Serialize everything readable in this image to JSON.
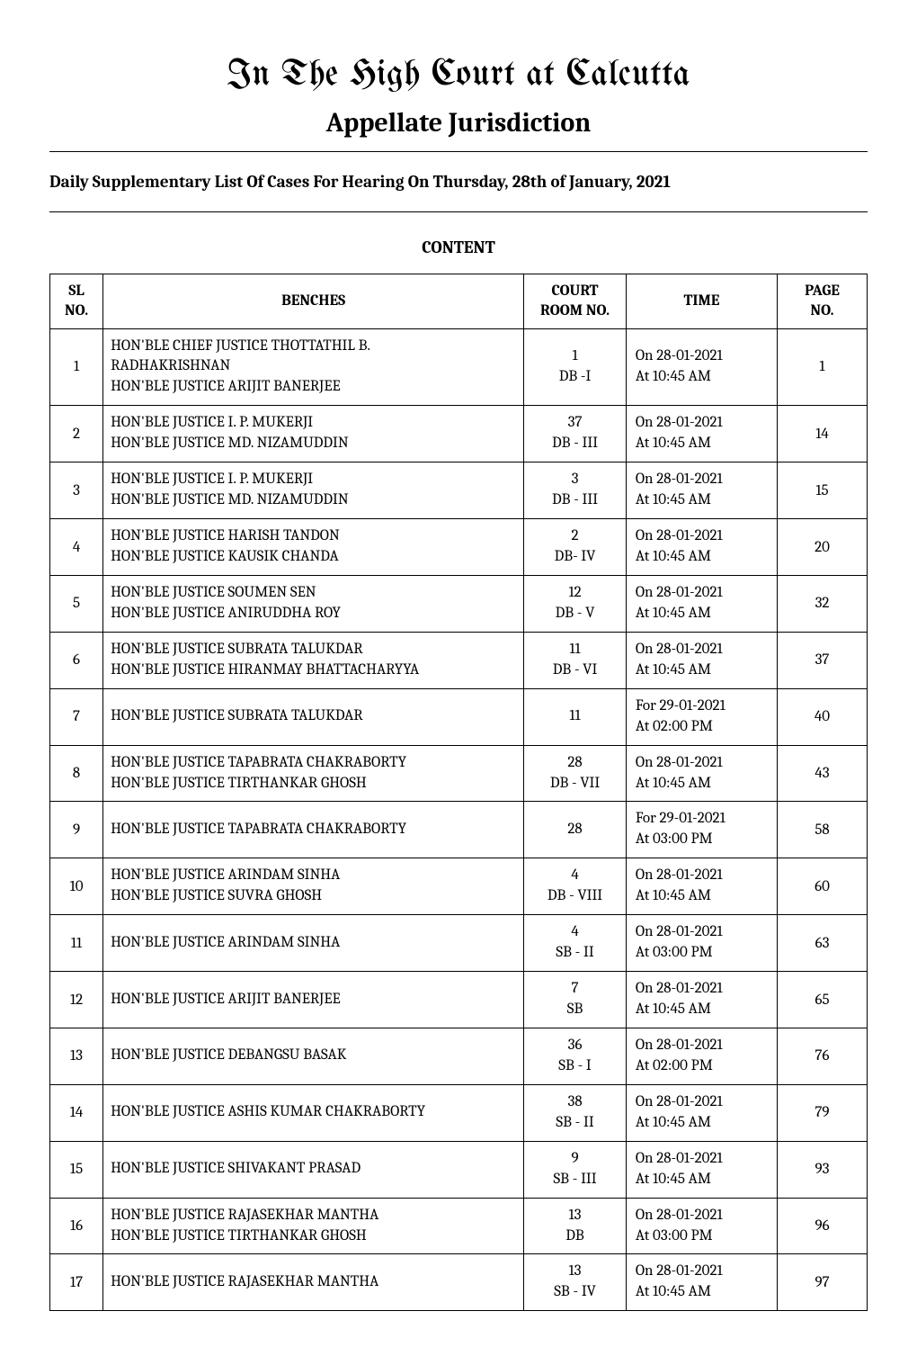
{
  "court_title": "In The High Court at Calcutta",
  "jurisdiction": "Appellate Jurisdiction",
  "daily_heading": "Daily Supplementary List Of Cases For Hearing On Thursday, 28th of January, 2021",
  "content_label": "CONTENT",
  "columns": {
    "sl": {
      "line1": "SL",
      "line2": "NO."
    },
    "bench": {
      "line1": "BENCHES"
    },
    "room": {
      "line1": "COURT",
      "line2": "ROOM NO."
    },
    "time": {
      "line1": "TIME"
    },
    "page": {
      "line1": "PAGE",
      "line2": "NO."
    }
  },
  "table": {
    "col_widths_pct": [
      6.5,
      51.5,
      12.5,
      18.5,
      11
    ],
    "fontsize_header": 17,
    "fontsize_body": 17,
    "border_color": "#000000",
    "background_color": "#ffffff"
  },
  "rows": [
    {
      "sl": "1",
      "benches": [
        "HON'BLE CHIEF JUSTICE THOTTATHIL B.",
        "RADHAKRISHNAN",
        "HON'BLE JUSTICE ARIJIT BANERJEE"
      ],
      "room": [
        "1",
        "DB -I"
      ],
      "time": [
        "On 28-01-2021",
        "At 10:45 AM"
      ],
      "page": "1"
    },
    {
      "sl": "2",
      "benches": [
        "HON'BLE JUSTICE I. P. MUKERJI",
        "HON'BLE JUSTICE MD. NIZAMUDDIN"
      ],
      "room": [
        "37",
        "DB - III"
      ],
      "time": [
        "On 28-01-2021",
        "At 10:45 AM"
      ],
      "page": "14"
    },
    {
      "sl": "3",
      "benches": [
        "HON'BLE JUSTICE I. P. MUKERJI",
        "HON'BLE JUSTICE MD. NIZAMUDDIN"
      ],
      "room": [
        "3",
        "DB - III"
      ],
      "time": [
        "On 28-01-2021",
        "At 10:45 AM"
      ],
      "page": "15"
    },
    {
      "sl": "4",
      "benches": [
        "HON'BLE JUSTICE HARISH TANDON",
        "HON'BLE JUSTICE KAUSIK CHANDA"
      ],
      "room": [
        "2",
        "DB- IV"
      ],
      "time": [
        "On 28-01-2021",
        "At 10:45 AM"
      ],
      "page": "20"
    },
    {
      "sl": "5",
      "benches": [
        "HON'BLE JUSTICE SOUMEN SEN",
        "HON'BLE JUSTICE ANIRUDDHA ROY"
      ],
      "room": [
        "12",
        "DB - V"
      ],
      "time": [
        "On 28-01-2021",
        "At 10:45 AM"
      ],
      "page": "32"
    },
    {
      "sl": "6",
      "benches": [
        "HON'BLE JUSTICE SUBRATA TALUKDAR",
        "HON'BLE JUSTICE HIRANMAY BHATTACHARYYA"
      ],
      "room": [
        "11",
        "DB - VI"
      ],
      "time": [
        "On 28-01-2021",
        "At 10:45 AM"
      ],
      "page": "37"
    },
    {
      "sl": "7",
      "benches": [
        "HON'BLE JUSTICE SUBRATA TALUKDAR"
      ],
      "room": [
        "11"
      ],
      "time": [
        "For  29-01-2021",
        "At 02:00 PM"
      ],
      "page": "40"
    },
    {
      "sl": "8",
      "benches": [
        "HON'BLE JUSTICE TAPABRATA CHAKRABORTY",
        "HON'BLE JUSTICE TIRTHANKAR GHOSH"
      ],
      "room": [
        "28",
        "DB - VII"
      ],
      "time": [
        "On 28-01-2021",
        "At 10:45 AM"
      ],
      "page": "43"
    },
    {
      "sl": "9",
      "benches": [
        "HON'BLE JUSTICE TAPABRATA CHAKRABORTY"
      ],
      "room": [
        "28"
      ],
      "time": [
        "For  29-01-2021",
        "At 03:00 PM"
      ],
      "page": "58"
    },
    {
      "sl": "10",
      "benches": [
        "HON'BLE JUSTICE ARINDAM SINHA",
        "HON'BLE JUSTICE SUVRA GHOSH"
      ],
      "room": [
        "4",
        "DB - VIII"
      ],
      "time": [
        "On 28-01-2021",
        "At 10:45 AM"
      ],
      "page": "60"
    },
    {
      "sl": "11",
      "benches": [
        "HON'BLE JUSTICE ARINDAM SINHA"
      ],
      "room": [
        "4",
        "SB - II"
      ],
      "time": [
        "On 28-01-2021",
        "At 03:00 PM"
      ],
      "page": "63"
    },
    {
      "sl": "12",
      "benches": [
        "HON'BLE JUSTICE ARIJIT BANERJEE"
      ],
      "room": [
        "7",
        "SB"
      ],
      "time": [
        "On 28-01-2021",
        "At 10:45 AM"
      ],
      "page": "65"
    },
    {
      "sl": "13",
      "benches": [
        "HON'BLE JUSTICE DEBANGSU BASAK"
      ],
      "room": [
        "36",
        "SB - I"
      ],
      "time": [
        "On 28-01-2021",
        "At 02:00 PM"
      ],
      "page": "76"
    },
    {
      "sl": "14",
      "benches": [
        "HON'BLE JUSTICE ASHIS KUMAR CHAKRABORTY"
      ],
      "room": [
        "38",
        "SB - II"
      ],
      "time": [
        "On 28-01-2021",
        "At 10:45 AM"
      ],
      "page": "79"
    },
    {
      "sl": "15",
      "benches": [
        "HON'BLE JUSTICE SHIVAKANT PRASAD"
      ],
      "room": [
        "9",
        "SB - III"
      ],
      "time": [
        "On 28-01-2021",
        "At 10:45 AM"
      ],
      "page": "93"
    },
    {
      "sl": "16",
      "benches": [
        "HON'BLE JUSTICE RAJASEKHAR MANTHA",
        "HON'BLE JUSTICE TIRTHANKAR GHOSH"
      ],
      "room": [
        "13",
        "DB"
      ],
      "time": [
        "On 28-01-2021",
        "At 03:00 PM"
      ],
      "page": "96"
    },
    {
      "sl": "17",
      "benches": [
        "HON'BLE JUSTICE RAJASEKHAR MANTHA"
      ],
      "room": [
        "13",
        "SB - IV"
      ],
      "time": [
        "On 28-01-2021",
        "At 10:45 AM"
      ],
      "page": "97"
    }
  ]
}
